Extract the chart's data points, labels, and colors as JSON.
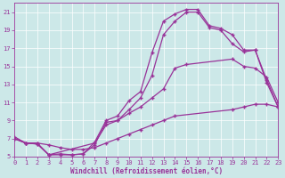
{
  "xlabel": "Windchill (Refroidissement éolien,°C)",
  "bg_color": "#cce8e8",
  "line_color": "#993399",
  "xlim": [
    0,
    23
  ],
  "ylim": [
    5,
    22
  ],
  "yticks": [
    5,
    7,
    9,
    11,
    13,
    15,
    17,
    19,
    21
  ],
  "xticks": [
    0,
    1,
    2,
    3,
    4,
    5,
    6,
    7,
    8,
    9,
    10,
    11,
    12,
    13,
    14,
    15,
    16,
    17,
    18,
    19,
    20,
    21,
    22,
    23
  ],
  "curve1_x": [
    0,
    1,
    2,
    3,
    4,
    5,
    6,
    7,
    8,
    9,
    10,
    11,
    12,
    13,
    14,
    15,
    16,
    17,
    18,
    19,
    20,
    21,
    22,
    23
  ],
  "curve1_y": [
    7.2,
    6.5,
    6.5,
    5.2,
    5.3,
    5.2,
    5.3,
    6.6,
    9.0,
    9.5,
    11.2,
    12.2,
    16.5,
    20.0,
    20.8,
    21.3,
    21.3,
    19.5,
    19.2,
    18.5,
    16.8,
    16.8,
    13.5,
    10.5
  ],
  "curve2_x": [
    0,
    1,
    2,
    3,
    4,
    5,
    6,
    7,
    8,
    9,
    10,
    11,
    12,
    13,
    14,
    15,
    16,
    17,
    18,
    19,
    20,
    21,
    22,
    23
  ],
  "curve2_y": [
    7.0,
    6.5,
    6.4,
    5.2,
    5.2,
    5.2,
    5.3,
    6.3,
    8.8,
    9.0,
    10.2,
    11.5,
    14.0,
    18.5,
    20.0,
    21.0,
    21.0,
    19.3,
    19.0,
    17.5,
    16.6,
    16.8,
    13.2,
    10.5
  ],
  "curve3_x": [
    0,
    1,
    2,
    3,
    7,
    8,
    9,
    10,
    11,
    12,
    13,
    14,
    15,
    19,
    20,
    21,
    22,
    23
  ],
  "curve3_y": [
    7.0,
    6.5,
    6.4,
    5.2,
    6.5,
    8.5,
    9.0,
    9.8,
    10.5,
    11.5,
    12.5,
    14.8,
    15.2,
    15.8,
    15.0,
    14.8,
    13.8,
    11.0
  ],
  "curve4_x": [
    0,
    1,
    2,
    3,
    4,
    5,
    6,
    7,
    8,
    9,
    10,
    11,
    12,
    13,
    14,
    19,
    20,
    21,
    22,
    23
  ],
  "curve4_y": [
    7.0,
    6.5,
    6.5,
    6.3,
    6.0,
    5.8,
    5.8,
    6.0,
    6.5,
    7.0,
    7.5,
    8.0,
    8.5,
    9.0,
    9.5,
    10.2,
    10.5,
    10.8,
    10.8,
    10.5
  ]
}
